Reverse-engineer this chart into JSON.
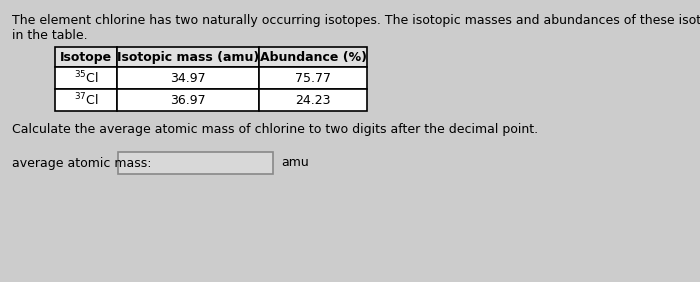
{
  "background_color": "#cccccc",
  "intro_line1": "The element chlorine has two naturally occurring isotopes. The isotopic masses and abundances of these isotopes are shown",
  "intro_line2": "in the table.",
  "table_headers": [
    "Isotope",
    "Isotopic mass (amu)",
    "Abundance (%)"
  ],
  "row1_isotope": "$^{35}$Cl",
  "row1_mass": "34.97",
  "row1_abundance": "75.77",
  "row2_isotope": "$^{37}$Cl",
  "row2_mass": "36.97",
  "row2_abundance": "24.23",
  "question_text": "Calculate the average atomic mass of chlorine to two digits after the decimal point.",
  "answer_label": "average atomic mass:",
  "answer_unit": "amu",
  "font_size": 9.0,
  "table_font_size": 9.0
}
